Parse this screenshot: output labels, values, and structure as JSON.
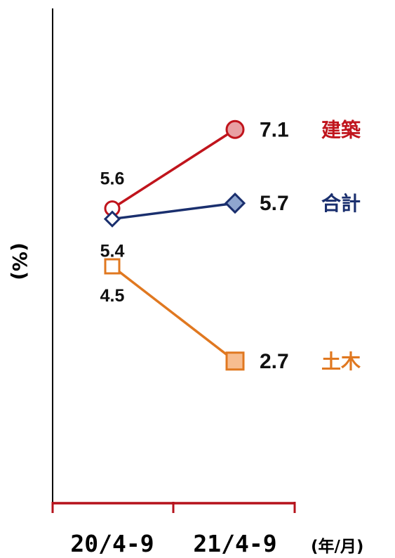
{
  "chart_data": {
    "type": "line",
    "categories": [
      "20/4-9",
      "21/4-9"
    ],
    "xunit": "(年/月)",
    "ylabel": "(%)",
    "ylim": [
      0,
      9.4
    ],
    "grid": false,
    "series": [
      {
        "name": "建築",
        "values": [
          5.6,
          7.1
        ],
        "labels": [
          "5.6",
          "7.1"
        ],
        "color": "#c0141c",
        "fill": "#e8a0a3",
        "marker": "circle"
      },
      {
        "name": "合計",
        "values": [
          5.4,
          5.7
        ],
        "labels": [
          "5.4",
          "5.7"
        ],
        "color": "#1a2f6e",
        "fill": "#8fa6cf",
        "marker": "diamond"
      },
      {
        "name": "土木",
        "values": [
          4.5,
          2.7
        ],
        "labels": [
          "4.5",
          "2.7"
        ],
        "color": "#e07820",
        "fill": "#f7bd90",
        "marker": "square"
      }
    ],
    "axis_color": "#000000",
    "xaxis_color": "#b5121b"
  }
}
